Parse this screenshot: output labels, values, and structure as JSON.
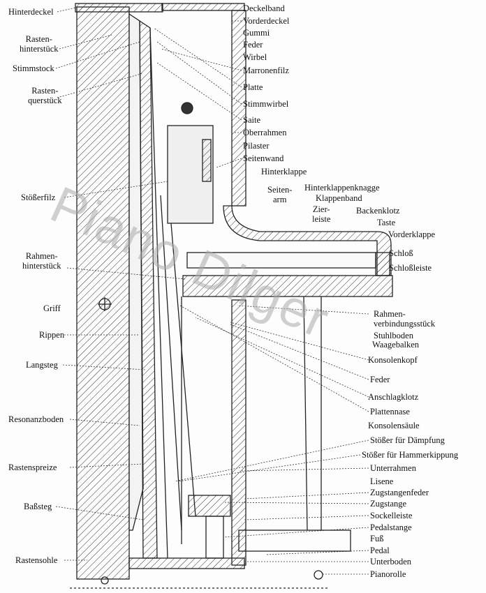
{
  "watermark": "Piano Dilger",
  "labels_left": {
    "hinterdeckel": "Hinterdeckel",
    "rastenhinterstueck": "Rasten-\nhinterstück",
    "stimmstock": "Stimmstock",
    "rastenquerstueck": "Rasten-\nquerstück",
    "stoesserfilz": "Stößerfilz",
    "rahmenhinterstueck": "Rahmen-\nhinterstück",
    "griff": "Griff",
    "rippen": "Rippen",
    "langsteg": "Langsteg",
    "resonanzboden": "Resonanzboden",
    "rastenspreize": "Rastenspreize",
    "bassteg": "Baßsteg",
    "rastensohle": "Rastensohle"
  },
  "labels_right": {
    "deckelband": "Deckelband",
    "vorderdeckel": "Vorderdeckel",
    "gummi": "Gummi",
    "feder_top": "Feder",
    "wirbel": "Wirbel",
    "marronenfilz": "Marronenfilz",
    "platte": "Platte",
    "stimmwirbel": "Stimmwirbel",
    "saite": "Saite",
    "oberrahmen": "Oberrahmen",
    "pilaster": "Pilaster",
    "seitenwand": "Seitenwand",
    "hinterklappe": "Hinterklappe",
    "seitenarm": "Seiten-\narm",
    "hinterklappenknagge": "Hinterklappenknagge",
    "klappenband": "Klappenband",
    "zierleiste": "Zier-\nleiste",
    "backenklotz": "Backenklotz",
    "taste": "Taste",
    "vorderklappe": "Vorderklappe",
    "schloss": "Schloß",
    "schlossleiste": "Schloßleiste",
    "rahmenverbindungsstueck": "Rahmen-\nverbindungsstück",
    "stuhlboden": "Stuhlboden",
    "waagebalken": "Waagebalken",
    "konsolenkopf": "Konsolenkopf",
    "feder_bottom": "Feder",
    "anschlagklotz": "Anschlagklotz",
    "plattennase": "Plattennase",
    "konsolensaeule": "Konsolensäule",
    "stoesser_daempfung": "Stößer für Dämpfung",
    "stoesser_hammerkippung": "Stößer für Hammerkippung",
    "unterrahmen": "Unterrahmen",
    "lisene": "Lisene",
    "zugstangenfeder": "Zugstangenfeder",
    "zugstange": "Zugstange",
    "sockelleiste": "Sockelleiste",
    "pedalstange": "Pedalstange",
    "fuss": "Fuß",
    "pedal": "Pedal",
    "unterboden": "Unterboden",
    "pianorolle": "Pianorolle"
  }
}
